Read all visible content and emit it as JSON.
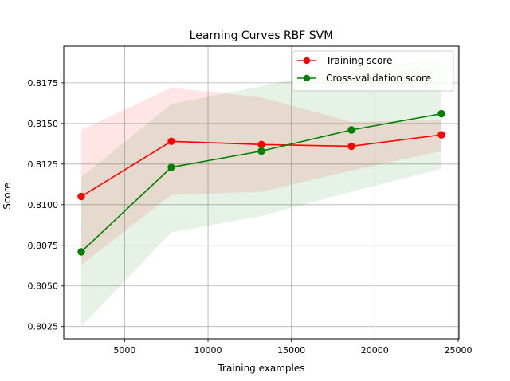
{
  "chart_data": {
    "type": "line",
    "title": "Learning Curves RBF SVM",
    "xlabel": "Training examples",
    "ylabel": "Score",
    "xlim": [
      1350,
      25050
    ],
    "ylim": [
      0.80175,
      0.81975
    ],
    "xticks": [
      5000,
      10000,
      15000,
      20000,
      25000
    ],
    "yticks": [
      0.8025,
      0.805,
      0.8075,
      0.81,
      0.8125,
      0.815,
      0.8175
    ],
    "xtick_labels": [
      "5000",
      "10000",
      "15000",
      "20000",
      "25000"
    ],
    "ytick_labels": [
      "0.8025",
      "0.8050",
      "0.8075",
      "0.8100",
      "0.8125",
      "0.8150",
      "0.8175"
    ],
    "grid": true,
    "legend_position": "upper right",
    "x": [
      2400,
      7800,
      13200,
      18600,
      24000
    ],
    "series": [
      {
        "name": "Training score",
        "color": "#ff0000",
        "band_color": "#ff0000",
        "values": [
          0.8105,
          0.8139,
          0.8137,
          0.8136,
          0.8143
        ],
        "band_lower": [
          0.8063,
          0.8106,
          0.8108,
          0.8121,
          0.8133
        ],
        "band_upper": [
          0.8146,
          0.8172,
          0.8166,
          0.8151,
          0.8152
        ]
      },
      {
        "name": "Cross-validation score",
        "color": "#008000",
        "band_color": "#008000",
        "values": [
          0.8071,
          0.8123,
          0.8133,
          0.8146,
          0.8156
        ],
        "band_lower": [
          0.8025,
          0.8083,
          0.8093,
          0.8108,
          0.8122
        ],
        "band_upper": [
          0.8117,
          0.8162,
          0.8173,
          0.8184,
          0.8189
        ]
      }
    ]
  }
}
